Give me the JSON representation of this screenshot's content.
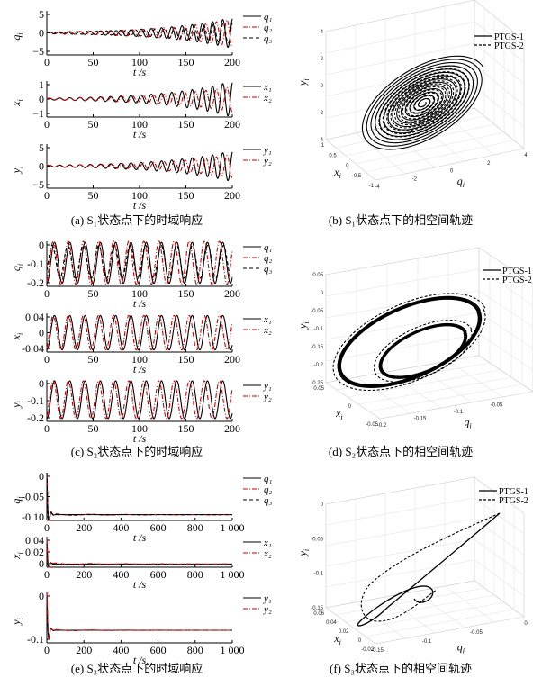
{
  "chart_data": [
    {
      "id": "a",
      "type": "line",
      "caption": "(a) S₁状态点下的时域响应",
      "panels": [
        {
          "ylabel": "q_i",
          "xlabel": "t /s",
          "xlim": [
            0,
            200
          ],
          "ylim": [
            -5,
            5
          ],
          "yticks": [
            "5",
            "0",
            "−5"
          ],
          "xticks": [
            "0",
            "50",
            "100",
            "150",
            "200"
          ],
          "series": [
            {
              "name": "q₁",
              "amp0": 0.2,
              "amp1": 3.5,
              "period": 11
            },
            {
              "name": "q₂",
              "amp0": 0.2,
              "amp1": 3.2,
              "period": 11.3
            },
            {
              "name": "q₃",
              "amp0": 0.2,
              "amp1": 2.5,
              "period": 10.5
            }
          ]
        },
        {
          "ylabel": "x_i",
          "xlabel": "t /s",
          "xlim": [
            0,
            200
          ],
          "ylim": [
            -1,
            1
          ],
          "yticks": [
            "1",
            "0",
            "−1"
          ],
          "xticks": [
            "0",
            "50",
            "100",
            "150",
            "200"
          ],
          "series": [
            {
              "name": "x₁",
              "amp0": 0.05,
              "amp1": 1.0,
              "period": 11
            },
            {
              "name": "x₂",
              "amp0": 0.05,
              "amp1": 0.7,
              "period": 11.3
            }
          ]
        },
        {
          "ylabel": "y_i",
          "xlabel": "t /s",
          "xlim": [
            0,
            200
          ],
          "ylim": [
            -5,
            5
          ],
          "yticks": [
            "5",
            "0",
            "−5"
          ],
          "xticks": [
            "0",
            "50",
            "100",
            "150",
            "200"
          ],
          "series": [
            {
              "name": "y₁",
              "amp0": 0.2,
              "amp1": 3.5,
              "period": 11
            },
            {
              "name": "y₂",
              "amp0": 0.2,
              "amp1": 2.6,
              "period": 11.3
            }
          ]
        }
      ]
    },
    {
      "id": "b",
      "type": "line3d",
      "caption": "(b) S₁状态点下的相空间轨迹",
      "xlabel": "q_i",
      "ylabel": "x_i",
      "zlabel": "y_i",
      "zticks": [
        "4",
        "2",
        "0",
        "-2",
        "-4"
      ],
      "xticks": [
        "-4",
        "-2",
        "0",
        "2",
        "4"
      ],
      "yticks": [
        "1",
        "0.5",
        "0",
        "-0.5",
        "-1"
      ],
      "legend": [
        "PTGS-1",
        "PTGS-2"
      ]
    },
    {
      "id": "c",
      "type": "line",
      "caption": "(c) S₂状态点下的时域响应",
      "panels": [
        {
          "ylabel": "q_i",
          "xlabel": "t /s",
          "xlim": [
            0,
            200
          ],
          "ylim": [
            -0.22,
            0
          ],
          "yticks": [
            "0",
            "-0.1",
            "-0.2"
          ],
          "xticks": [
            "0",
            "50",
            "100",
            "150",
            "200"
          ],
          "series": [
            {
              "name": "q₁",
              "mean": -0.105,
              "amp": 0.1,
              "period": 16.5
            },
            {
              "name": "q₂",
              "mean": -0.105,
              "amp": 0.105,
              "period": 16.3
            },
            {
              "name": "q₃",
              "mean": -0.1,
              "amp": 0.08,
              "period": 16.8
            }
          ]
        },
        {
          "ylabel": "x_i",
          "xlabel": "t /s",
          "xlim": [
            0,
            200
          ],
          "ylim": [
            -0.045,
            0.045
          ],
          "yticks": [
            "0.04",
            "0",
            "-0.04"
          ],
          "xticks": [
            "0",
            "50",
            "100",
            "150",
            "200"
          ],
          "series": [
            {
              "name": "x₁",
              "mean": 0,
              "amp": 0.04,
              "period": 16.5
            },
            {
              "name": "x₂",
              "mean": 0,
              "amp": 0.04,
              "period": 16.3
            }
          ]
        },
        {
          "ylabel": "y_i",
          "xlabel": "t /s",
          "xlim": [
            0,
            200
          ],
          "ylim": [
            -0.22,
            0
          ],
          "yticks": [
            "0",
            "-0.1",
            "-0.2"
          ],
          "xticks": [
            "0",
            "50",
            "100",
            "150",
            "200"
          ],
          "series": [
            {
              "name": "y₁",
              "mean": -0.105,
              "amp": 0.1,
              "period": 16.5
            },
            {
              "name": "y₂",
              "mean": -0.105,
              "amp": 0.1,
              "period": 16.3
            }
          ]
        }
      ]
    },
    {
      "id": "d",
      "type": "line3d",
      "caption": "(d) S₂状态点下的相空间轨迹",
      "xlabel": "q_i",
      "ylabel": "x_i",
      "zlabel": "y_i",
      "zticks": [
        "0.05",
        "0",
        "-0.05",
        "-0.1",
        "-0.15",
        "-0.2",
        "-0.25"
      ],
      "xticks": [
        "-0.2",
        "-0.15",
        "-0.1",
        "-0.05",
        "0"
      ],
      "yticks": [
        "0.05",
        "0",
        "-0.05"
      ],
      "legend": [
        "PTGS-1",
        "PTGS-2"
      ]
    },
    {
      "id": "e",
      "type": "line",
      "caption": "(e) S₃状态点下的时域响应",
      "panels": [
        {
          "ylabel": "q_i",
          "xlabel": "t /s",
          "xlim": [
            0,
            1000
          ],
          "ylim": [
            -0.125,
            0
          ],
          "yticks": [
            "0",
            "-0.05",
            "-0.10"
          ],
          "xticks": [
            "0",
            "200",
            "400",
            "600",
            "800",
            "1 000"
          ],
          "series": [
            {
              "name": "q₁",
              "final": -0.11
            },
            {
              "name": "q₂",
              "final": -0.11
            },
            {
              "name": "q₃",
              "final": -0.11
            }
          ]
        },
        {
          "ylabel": "x_i",
          "xlabel": "t /s",
          "xlim": [
            0,
            1000
          ],
          "ylim": [
            -0.006,
            0.05
          ],
          "yticks": [
            "0.04",
            "0.02",
            "0"
          ],
          "xticks": [
            "0",
            "200",
            "400",
            "600",
            "800",
            "1 000"
          ],
          "series": [
            {
              "name": "x₁",
              "final": 0
            },
            {
              "name": "x₂",
              "final": 0
            }
          ]
        },
        {
          "ylabel": "y_i",
          "xlabel": "t /s",
          "xlim": [
            0,
            1000
          ],
          "ylim": [
            -0.14,
            0
          ],
          "yticks": [
            "0",
            "-0.1"
          ],
          "xticks": [
            "0",
            "200",
            "400",
            "600",
            "800",
            "1 000"
          ],
          "series": [
            {
              "name": "y₁",
              "final": -0.105
            },
            {
              "name": "y₂",
              "final": -0.105
            }
          ]
        }
      ]
    },
    {
      "id": "f",
      "type": "line3d",
      "caption": "(f) S₃状态点下的相空间轨迹",
      "xlabel": "q_i",
      "ylabel": "x_i",
      "zlabel": "y_i",
      "zticks": [
        "0",
        "-0.05",
        "-0.1",
        "-0.15"
      ],
      "xticks": [
        "-0.15",
        "-0.1",
        "-0.05",
        "0"
      ],
      "yticks": [
        "0.06",
        "0.04",
        "0.02",
        "0",
        "-0.02"
      ],
      "legend": [
        "PTGS-1",
        "PTGS-2"
      ]
    }
  ]
}
